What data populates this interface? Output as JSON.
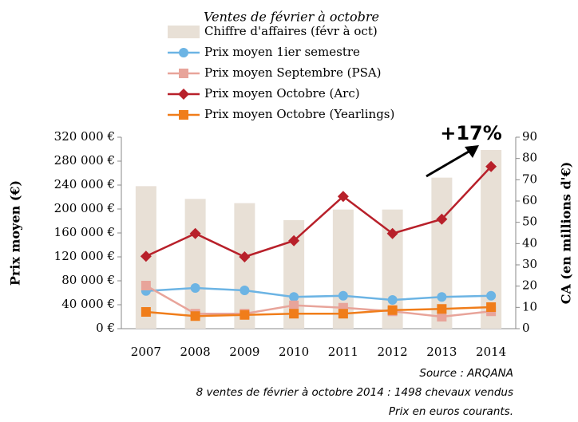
{
  "chart_data": {
    "type": "bar-line",
    "subtitle": "Ventes de février à octobre",
    "categories": [
      "2007",
      "2008",
      "2009",
      "2010",
      "2011",
      "2012",
      "2013",
      "2014"
    ],
    "series": [
      {
        "name": "Chiffre d'affaires (févr à oct)",
        "type": "bar",
        "axis": "y2",
        "color": "#e8e0d6",
        "values": [
          67,
          61,
          59,
          51,
          56,
          56,
          71,
          84
        ]
      },
      {
        "name": "Prix moyen 1ier semestre",
        "type": "line",
        "marker": "circle",
        "color": "#6cb4e4",
        "values": [
          63000,
          68000,
          64000,
          53000,
          55000,
          48000,
          53000,
          55000
        ]
      },
      {
        "name": "Prix moyen Septembre (PSA)",
        "type": "line",
        "marker": "square",
        "color": "#e8a49a",
        "values": [
          72000,
          25000,
          25000,
          39000,
          35000,
          29000,
          20000,
          29000
        ]
      },
      {
        "name": "Prix moyen Octobre (Arc)",
        "type": "line",
        "marker": "diamond",
        "color": "#b8202a",
        "values": [
          121000,
          159000,
          120000,
          147000,
          221000,
          159000,
          183000,
          271000
        ]
      },
      {
        "name": "Prix moyen Octobre (Yearlings)",
        "type": "line",
        "marker": "square",
        "color": "#f07d1a",
        "values": [
          28000,
          21000,
          23000,
          25000,
          25000,
          31000,
          33000,
          36000
        ]
      }
    ],
    "ylabel": "Prix moyen (€)",
    "y2label": "CA (en millions d'€)",
    "ylim": [
      0,
      320000
    ],
    "yticks": [
      {
        "value": 0,
        "label": "0 €"
      },
      {
        "value": 40000,
        "label": "40 000 €"
      },
      {
        "value": 80000,
        "label": "80 000 €"
      },
      {
        "value": 120000,
        "label": "120 000 €"
      },
      {
        "value": 160000,
        "label": "160 000 €"
      },
      {
        "value": 200000,
        "label": "200 000 €"
      },
      {
        "value": 240000,
        "label": "240 000 €"
      },
      {
        "value": 280000,
        "label": "280 000 €"
      },
      {
        "value": 320000,
        "label": "320 000 €"
      }
    ],
    "y2lim": [
      0,
      90
    ],
    "y2ticks": [
      0,
      10,
      20,
      30,
      40,
      50,
      60,
      70,
      80,
      90
    ],
    "annotation": "+17%",
    "notes": [
      "Source : ARQANA",
      "8 ventes de février à octobre 2014 : 1498 chevaux vendus",
      "Prix en euros courants."
    ]
  }
}
